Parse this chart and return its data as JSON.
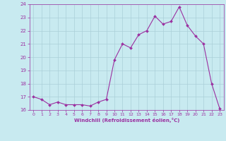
{
  "x": [
    0,
    1,
    2,
    3,
    4,
    5,
    6,
    7,
    8,
    9,
    10,
    11,
    12,
    13,
    14,
    15,
    16,
    17,
    18,
    19,
    20,
    21,
    22,
    23
  ],
  "y": [
    17.0,
    16.8,
    16.4,
    16.6,
    16.4,
    16.4,
    16.4,
    16.3,
    16.6,
    16.8,
    19.8,
    21.0,
    20.7,
    21.7,
    22.0,
    23.1,
    22.5,
    22.7,
    23.8,
    22.4,
    21.6,
    21.0,
    18.0,
    16.1
  ],
  "ylim": [
    16,
    24
  ],
  "yticks": [
    16,
    17,
    18,
    19,
    20,
    21,
    22,
    23,
    24
  ],
  "xticks": [
    0,
    1,
    2,
    3,
    4,
    5,
    6,
    7,
    8,
    9,
    10,
    11,
    12,
    13,
    14,
    15,
    16,
    17,
    18,
    19,
    20,
    21,
    22,
    23
  ],
  "line_color": "#9B30A0",
  "marker_color": "#9B30A0",
  "bg_color": "#C8EAF0",
  "grid_color": "#AACFD8",
  "xlabel": "Windchill (Refroidissement éolien,°C)",
  "xlabel_color": "#9B30A0",
  "tick_color": "#9B30A0",
  "figsize": [
    3.2,
    2.0
  ],
  "dpi": 100
}
